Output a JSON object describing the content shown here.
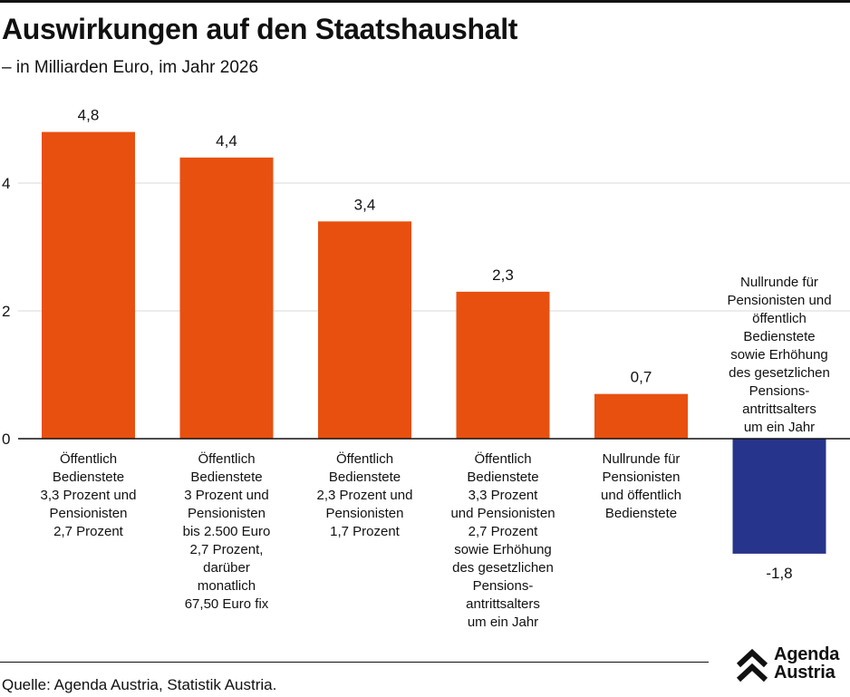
{
  "header": {
    "title": "Auswirkungen auf den Staatshaushalt",
    "subtitle": "– in Milliarden Euro, im Jahr 2026"
  },
  "footer": {
    "source": "Quelle: Agenda Austria, Statistik Austria.",
    "logo_line1": "Agenda",
    "logo_line2": "Austria"
  },
  "colors": {
    "positive": "#e8500f",
    "negative": "#27348b",
    "grid": "#d9d9d9",
    "axis": "#111111"
  },
  "chart_data": {
    "type": "bar",
    "title": "Auswirkungen auf den Staatshaushalt",
    "subtitle": "– in Milliarden Euro, im Jahr 2026",
    "xlabel": "",
    "ylabel": "Milliarden Euro",
    "ylim": [
      -2.0,
      5.2
    ],
    "yticks": [
      0,
      2,
      4
    ],
    "ytick_labels": [
      "0",
      "2",
      "4"
    ],
    "grid": true,
    "categories": [
      [
        "Öffentlich",
        "Bedienstete",
        "3,3 Prozent und",
        "Pensionisten",
        "2,7 Prozent"
      ],
      [
        "Öffentlich",
        "Bedienstete",
        "3 Prozent und",
        "Pensionisten",
        "bis 2.500 Euro",
        "2,7 Prozent,",
        "darüber",
        "monatlich",
        "67,50 Euro fix"
      ],
      [
        "Öffentlich",
        "Bedienstete",
        "2,3 Prozent und",
        "Pensionisten",
        "1,7 Prozent"
      ],
      [
        "Öffentlich",
        "Bedienstete",
        "3,3 Prozent",
        "und Pensionisten",
        "2,7 Prozent",
        "sowie Erhöhung",
        "des gesetzlichen",
        "Pensions-",
        "antrittsalters",
        "um ein Jahr"
      ],
      [
        "Nullrunde für",
        "Pensionisten",
        "und öffentlich",
        "Bedienstete"
      ],
      [
        "Nullrunde für",
        "Pensionisten und",
        "öffentlich",
        "Bedienstete",
        "sowie Erhöhung",
        "des gesetzlichen",
        "Pensions-",
        "antrittsalters",
        "um ein Jahr"
      ]
    ],
    "values": [
      4.8,
      4.4,
      3.4,
      2.3,
      0.7,
      -1.8
    ],
    "value_labels": [
      "4,8",
      "4,4",
      "3,4",
      "2,3",
      "0,7",
      "-1,8"
    ]
  }
}
